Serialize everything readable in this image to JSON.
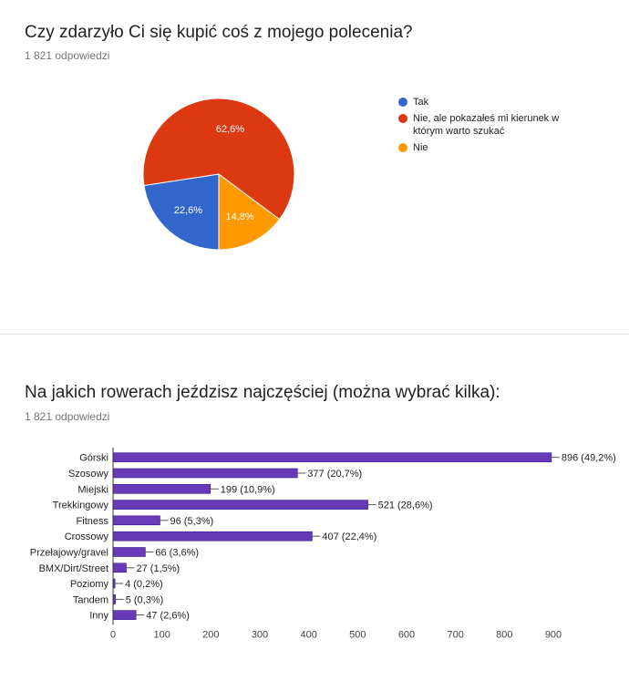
{
  "charts": [
    {
      "question": "Czy zdarzyło Ci się kupić coś z mojego polecenia?",
      "responses": "1 821 odpowiedzi"
    },
    {
      "question": "Na jakich rowerach jeździsz najczęściej (można wybrać kilka):",
      "responses": "1 821 odpowiedzi"
    }
  ],
  "chart_data": [
    {
      "type": "pie",
      "title": "Czy zdarzyło Ci się kupić coś z mojego polecenia?",
      "labels": [
        "Tak",
        "Nie, ale pokazałeś mi kierunek w którym warto szukać",
        "Nie"
      ],
      "values": [
        22.6,
        62.6,
        14.8
      ],
      "value_labels": [
        "22,6%",
        "62,6%",
        "14,8%"
      ],
      "colors": [
        "#3366cc",
        "#dc3912",
        "#ff9900"
      ],
      "legend": "right"
    },
    {
      "type": "bar",
      "orientation": "horizontal",
      "title": "Na jakich rowerach jeździsz najczęściej (można wybrać kilka):",
      "categories": [
        "Górski",
        "Szosowy",
        "Miejski",
        "Trekkingowy",
        "Fitness",
        "Crossowy",
        "Przełajowy/gravel",
        "BMX/Dirt/Street",
        "Poziomy",
        "Tandem",
        "Inny"
      ],
      "values": [
        896,
        377,
        199,
        521,
        96,
        407,
        66,
        27,
        4,
        5,
        47
      ],
      "value_labels": [
        "896 (49,2%)",
        "377 (20,7%)",
        "199 (10,9%)",
        "521 (28,6%)",
        "96 (5,3%)",
        "407 (22,4%)",
        "66 (3,6%)",
        "27 (1,5%)",
        "4 (0,2%)",
        "5 (0,3%)",
        "47 (2,6%)"
      ],
      "xlim": [
        0,
        900
      ],
      "xticks": [
        0,
        100,
        200,
        300,
        400,
        500,
        600,
        700,
        800,
        900
      ],
      "color": "#673ab7",
      "bar_stroke": "#311b92",
      "grid": false
    }
  ]
}
